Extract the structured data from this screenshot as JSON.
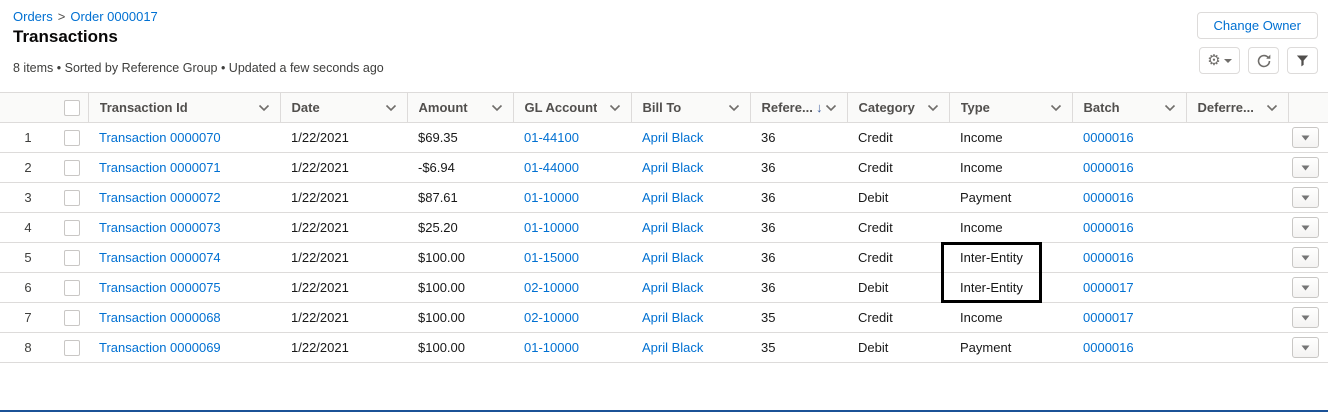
{
  "colors": {
    "link_blue": "#0070d2",
    "title_text": "#080707",
    "header_text": "#514f4d",
    "body_text": "#181818",
    "muted_text": "#3e3e3c",
    "border_gray": "#dddbda",
    "header_bg": "#fafaf9",
    "sort_arrow_blue": "#44639f",
    "annotation_black": "#000000",
    "bottom_edge_blue": "#1b5297"
  },
  "breadcrumb": {
    "items": [
      "Orders",
      "Order 0000017"
    ],
    "separator": ">"
  },
  "page": {
    "title": "Transactions",
    "summary": "8 items • Sorted by Reference Group • Updated a few seconds ago"
  },
  "toolbar": {
    "change_owner_label": "Change Owner",
    "icons": [
      "list-view-controls-gear",
      "refresh",
      "filter"
    ]
  },
  "table": {
    "columns": [
      {
        "label": "",
        "sortable": false
      },
      {
        "label": "",
        "sortable": false
      },
      {
        "label": "Transaction Id",
        "sortable": true
      },
      {
        "label": "Date",
        "sortable": true
      },
      {
        "label": "Amount",
        "sortable": true
      },
      {
        "label": "GL Account",
        "sortable": true
      },
      {
        "label": "Bill To",
        "sortable": true
      },
      {
        "label": "Refere...",
        "sortable": true,
        "sorted": "desc"
      },
      {
        "label": "Category",
        "sortable": true
      },
      {
        "label": "Type",
        "sortable": true
      },
      {
        "label": "Batch",
        "sortable": true
      },
      {
        "label": "Deferre...",
        "sortable": true
      },
      {
        "label": "",
        "sortable": false
      }
    ],
    "rows": [
      {
        "num": "1",
        "id": "Transaction 0000070",
        "date": "1/22/2021",
        "amount": "$69.35",
        "gl_account": "01-44100",
        "bill_to": "April Black",
        "reference": "36",
        "category": "Credit",
        "type": "Income",
        "batch": "0000016",
        "deferred": "",
        "type_highlight": false
      },
      {
        "num": "2",
        "id": "Transaction 0000071",
        "date": "1/22/2021",
        "amount": "-$6.94",
        "gl_account": "01-44000",
        "bill_to": "April Black",
        "reference": "36",
        "category": "Credit",
        "type": "Income",
        "batch": "0000016",
        "deferred": "",
        "type_highlight": false
      },
      {
        "num": "3",
        "id": "Transaction 0000072",
        "date": "1/22/2021",
        "amount": "$87.61",
        "gl_account": "01-10000",
        "bill_to": "April Black",
        "reference": "36",
        "category": "Debit",
        "type": "Payment",
        "batch": "0000016",
        "deferred": "",
        "type_highlight": false
      },
      {
        "num": "4",
        "id": "Transaction 0000073",
        "date": "1/22/2021",
        "amount": "$25.20",
        "gl_account": "01-10000",
        "bill_to": "April Black",
        "reference": "36",
        "category": "Credit",
        "type": "Income",
        "batch": "0000016",
        "deferred": "",
        "type_highlight": false
      },
      {
        "num": "5",
        "id": "Transaction 0000074",
        "date": "1/22/2021",
        "amount": "$100.00",
        "gl_account": "01-15000",
        "bill_to": "April Black",
        "reference": "36",
        "category": "Credit",
        "type": "Inter-Entity",
        "batch": "0000016",
        "deferred": "",
        "type_highlight": true
      },
      {
        "num": "6",
        "id": "Transaction 0000075",
        "date": "1/22/2021",
        "amount": "$100.00",
        "gl_account": "02-10000",
        "bill_to": "April Black",
        "reference": "36",
        "category": "Debit",
        "type": "Inter-Entity",
        "batch": "0000017",
        "deferred": "",
        "type_highlight": true
      },
      {
        "num": "7",
        "id": "Transaction 0000068",
        "date": "1/22/2021",
        "amount": "$100.00",
        "gl_account": "02-10000",
        "bill_to": "April Black",
        "reference": "35",
        "category": "Credit",
        "type": "Income",
        "batch": "0000017",
        "deferred": "",
        "type_highlight": false
      },
      {
        "num": "8",
        "id": "Transaction 0000069",
        "date": "1/22/2021",
        "amount": "$100.00",
        "gl_account": "01-10000",
        "bill_to": "April Black",
        "reference": "35",
        "category": "Debit",
        "type": "Payment",
        "batch": "0000016",
        "deferred": "",
        "type_highlight": false
      }
    ]
  },
  "annotation": {
    "target": "Inter-Entity type values, rows 5-6"
  }
}
